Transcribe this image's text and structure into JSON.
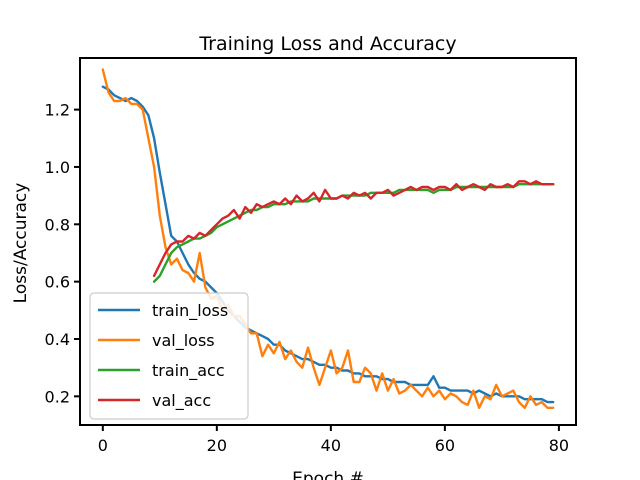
{
  "chart_data": {
    "type": "line",
    "title": "Training Loss and Accuracy",
    "xlabel": "Epoch #",
    "ylabel": "Loss/Accuracy",
    "xlim": [
      -4,
      83
    ],
    "ylim": [
      0.1,
      1.38
    ],
    "xticks": [
      0,
      20,
      40,
      60,
      80
    ],
    "xtick_labels": [
      "0",
      "20",
      "40",
      "60",
      "80"
    ],
    "yticks": [
      0.2,
      0.4,
      0.6,
      0.8,
      1.0,
      1.2
    ],
    "ytick_labels": [
      "0.2",
      "0.4",
      "0.6",
      "0.8",
      "1.0",
      "1.2"
    ],
    "grid": false,
    "legend_position": "lower-left",
    "x": [
      0,
      1,
      2,
      3,
      4,
      5,
      6,
      7,
      8,
      9,
      10,
      11,
      12,
      13,
      14,
      15,
      16,
      17,
      18,
      19,
      20,
      21,
      22,
      23,
      24,
      25,
      26,
      27,
      28,
      29,
      30,
      31,
      32,
      33,
      34,
      35,
      36,
      37,
      38,
      39,
      40,
      41,
      42,
      43,
      44,
      45,
      46,
      47,
      48,
      49,
      50,
      51,
      52,
      53,
      54,
      55,
      56,
      57,
      58,
      59,
      60,
      61,
      62,
      63,
      64,
      65,
      66,
      67,
      68,
      69,
      70,
      71,
      72,
      73,
      74,
      75,
      76,
      77,
      78,
      79
    ],
    "series": [
      {
        "name": "train_loss",
        "color": "#1f77b4",
        "values": [
          1.28,
          1.27,
          1.25,
          1.24,
          1.23,
          1.24,
          1.23,
          1.21,
          1.18,
          1.1,
          0.98,
          0.87,
          0.76,
          0.74,
          0.7,
          0.66,
          0.63,
          0.61,
          0.6,
          0.58,
          0.56,
          0.53,
          0.5,
          0.48,
          0.46,
          0.44,
          0.43,
          0.42,
          0.41,
          0.4,
          0.38,
          0.38,
          0.36,
          0.35,
          0.34,
          0.33,
          0.33,
          0.32,
          0.31,
          0.31,
          0.3,
          0.3,
          0.29,
          0.29,
          0.28,
          0.28,
          0.27,
          0.27,
          0.27,
          0.26,
          0.26,
          0.25,
          0.25,
          0.25,
          0.24,
          0.24,
          0.24,
          0.24,
          0.27,
          0.23,
          0.23,
          0.22,
          0.22,
          0.22,
          0.22,
          0.21,
          0.22,
          0.21,
          0.2,
          0.21,
          0.2,
          0.2,
          0.2,
          0.2,
          0.19,
          0.19,
          0.19,
          0.19,
          0.18,
          0.18
        ]
      },
      {
        "name": "val_loss",
        "color": "#ff7f0e",
        "values": [
          1.34,
          1.26,
          1.23,
          1.23,
          1.24,
          1.22,
          1.22,
          1.2,
          1.1,
          1.0,
          0.83,
          0.72,
          0.66,
          0.68,
          0.64,
          0.63,
          0.6,
          0.7,
          0.58,
          0.54,
          0.55,
          0.5,
          0.52,
          0.48,
          0.48,
          0.45,
          0.42,
          0.42,
          0.34,
          0.38,
          0.35,
          0.39,
          0.33,
          0.36,
          0.32,
          0.3,
          0.37,
          0.3,
          0.24,
          0.3,
          0.36,
          0.28,
          0.3,
          0.36,
          0.25,
          0.25,
          0.3,
          0.28,
          0.22,
          0.28,
          0.22,
          0.26,
          0.21,
          0.22,
          0.24,
          0.22,
          0.2,
          0.23,
          0.2,
          0.22,
          0.19,
          0.21,
          0.2,
          0.18,
          0.17,
          0.22,
          0.16,
          0.2,
          0.19,
          0.24,
          0.2,
          0.21,
          0.22,
          0.18,
          0.16,
          0.2,
          0.17,
          0.18,
          0.16,
          0.16
        ]
      },
      {
        "name": "train_acc",
        "color": "#2ca02c",
        "values": [
          null,
          null,
          null,
          null,
          null,
          null,
          null,
          null,
          null,
          0.6,
          0.62,
          0.66,
          0.7,
          0.72,
          0.73,
          0.74,
          0.75,
          0.75,
          0.76,
          0.77,
          0.79,
          0.8,
          0.81,
          0.82,
          0.83,
          0.84,
          0.85,
          0.85,
          0.86,
          0.86,
          0.87,
          0.87,
          0.87,
          0.88,
          0.88,
          0.88,
          0.88,
          0.89,
          0.89,
          0.89,
          0.89,
          0.89,
          0.9,
          0.9,
          0.9,
          0.9,
          0.9,
          0.91,
          0.91,
          0.91,
          0.91,
          0.91,
          0.92,
          0.92,
          0.92,
          0.92,
          0.92,
          0.92,
          0.91,
          0.92,
          0.92,
          0.92,
          0.93,
          0.93,
          0.93,
          0.93,
          0.93,
          0.93,
          0.93,
          0.93,
          0.93,
          0.93,
          0.93,
          0.94,
          0.94,
          0.94,
          0.94,
          0.94,
          0.94,
          0.94
        ]
      },
      {
        "name": "val_acc",
        "color": "#d62728",
        "values": [
          null,
          null,
          null,
          null,
          null,
          null,
          null,
          null,
          null,
          0.62,
          0.66,
          0.7,
          0.73,
          0.74,
          0.74,
          0.76,
          0.75,
          0.77,
          0.76,
          0.78,
          0.8,
          0.82,
          0.83,
          0.85,
          0.82,
          0.86,
          0.84,
          0.87,
          0.86,
          0.87,
          0.88,
          0.87,
          0.89,
          0.87,
          0.9,
          0.88,
          0.89,
          0.91,
          0.88,
          0.92,
          0.89,
          0.89,
          0.9,
          0.89,
          0.91,
          0.9,
          0.91,
          0.89,
          0.91,
          0.91,
          0.92,
          0.9,
          0.91,
          0.92,
          0.93,
          0.92,
          0.93,
          0.93,
          0.92,
          0.93,
          0.93,
          0.92,
          0.94,
          0.92,
          0.93,
          0.94,
          0.93,
          0.92,
          0.94,
          0.93,
          0.93,
          0.94,
          0.93,
          0.95,
          0.95,
          0.94,
          0.95,
          0.94,
          0.94,
          0.94
        ]
      }
    ]
  }
}
